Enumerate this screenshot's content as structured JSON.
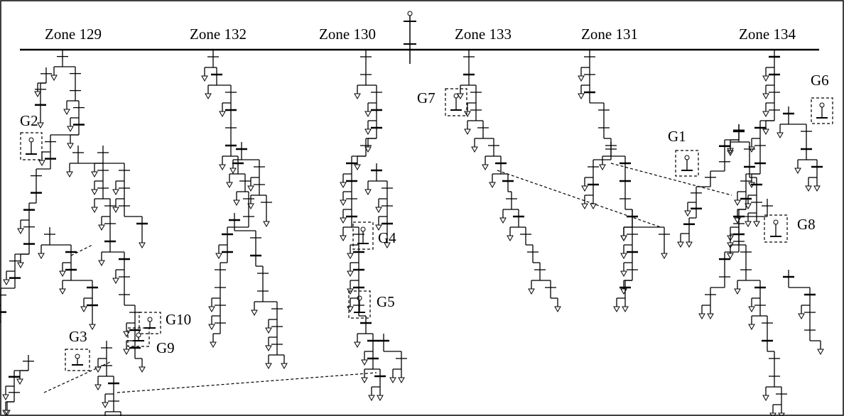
{
  "zones": [
    {
      "label": "Zone 129"
    },
    {
      "label": "Zone 132"
    },
    {
      "label": "Zone 130"
    },
    {
      "label": "Zone 133"
    },
    {
      "label": "Zone 131"
    },
    {
      "label": "Zone 134"
    }
  ],
  "generators": [
    {
      "label": "G1"
    },
    {
      "label": "G2"
    },
    {
      "label": "G3"
    },
    {
      "label": "G4"
    },
    {
      "label": "G5"
    },
    {
      "label": "G6"
    },
    {
      "label": "G7"
    },
    {
      "label": "G8"
    },
    {
      "label": "G9"
    },
    {
      "label": "G10"
    }
  ]
}
